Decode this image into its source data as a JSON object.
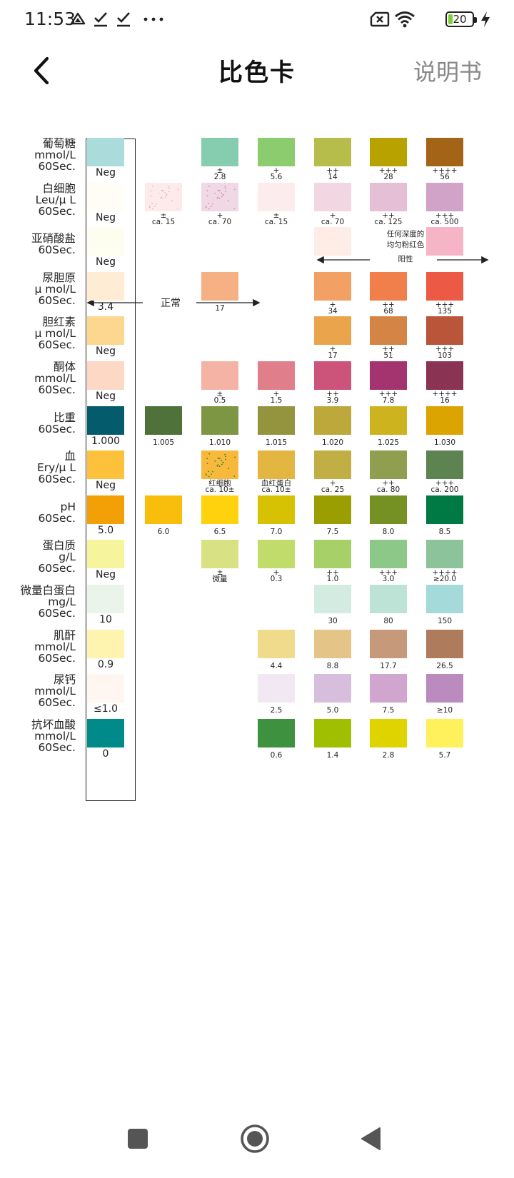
{
  "status_bar": {
    "time": "11:53",
    "battery_percent": "20",
    "battery_level": 0.2,
    "icons": [
      "drive-icon",
      "check-icon",
      "check-icon",
      "more-dots-icon",
      "sim-x-icon",
      "wifi-icon",
      "battery-icon",
      "charging-icon"
    ]
  },
  "header": {
    "title": "比色卡",
    "manual": "说明书",
    "back_icon": "back-chevron-icon"
  },
  "annotations": {
    "normal": "正常",
    "positive": "阳性",
    "pink_note_line1": "任何深度的",
    "pink_note_line2": "均匀粉红色"
  },
  "rows": [
    {
      "label": [
        "葡萄糖",
        "mmol/L",
        "60Sec."
      ],
      "ref": {
        "color": "#a9dcdb",
        "value": "Neg"
      },
      "cells": [
        {
          "col": 2,
          "color": "#86cdb0",
          "value": "±",
          "value2": "2.8"
        },
        {
          "col": 3,
          "color": "#8ccb6e",
          "value": "+",
          "value2": "5.6"
        },
        {
          "col": 4,
          "color": "#b6bd4b",
          "value": "++",
          "value2": "14"
        },
        {
          "col": 5,
          "color": "#b8a200",
          "value": "+++",
          "value2": "28"
        },
        {
          "col": 6,
          "color": "#a46417",
          "value": "++++",
          "value2": "56"
        }
      ]
    },
    {
      "label": [
        "白细胞",
        "Leu/μ L",
        "60Sec."
      ],
      "ref": {
        "color": "#fffdf5",
        "value": "Neg"
      },
      "cells": [
        {
          "col": 1,
          "color": "#fdebec",
          "dots": "#e7b4c3",
          "value": "±",
          "value2": "ca. 15"
        },
        {
          "col": 2,
          "color": "#f0d8e4",
          "dots": "#c893b4",
          "value": "+",
          "value2": "ca. 70"
        },
        {
          "col": 3,
          "color": "#fdeced",
          "value": "±",
          "value2": "ca. 15"
        },
        {
          "col": 4,
          "color": "#f2d6e2",
          "value": "+",
          "value2": "ca. 70"
        },
        {
          "col": 5,
          "color": "#e5bfd6",
          "value": "++",
          "value2": "ca. 125"
        },
        {
          "col": 6,
          "color": "#d1a3c8",
          "value": "+++",
          "value2": "ca. 500"
        }
      ]
    },
    {
      "label": [
        "亚硝酸盐",
        "60Sec."
      ],
      "ref": {
        "color": "#fefef0",
        "value": "Neg"
      },
      "cells": [
        {
          "col": 4,
          "color": "#feece6"
        },
        {
          "col": 6,
          "color": "#f5b5c7"
        }
      ]
    },
    {
      "label": [
        "尿胆原",
        "μ mol/L",
        "60Sec."
      ],
      "ref": {
        "color": "#feecd5",
        "value": "3.4"
      },
      "cells": [
        {
          "col": 2,
          "color": "#f5b083",
          "value": "17"
        },
        {
          "col": 4,
          "color": "#f2a063",
          "value": "+",
          "value2": "34"
        },
        {
          "col": 5,
          "color": "#f07f4b",
          "value": "++",
          "value2": "68"
        },
        {
          "col": 6,
          "color": "#ec5a45",
          "value": "+++",
          "value2": "135"
        }
      ]
    },
    {
      "label": [
        "胆红素",
        "μ mol/L",
        "60Sec."
      ],
      "ref": {
        "color": "#fdd68f",
        "value": "Neg"
      },
      "cells": [
        {
          "col": 4,
          "color": "#eaa44c",
          "value": "+",
          "value2": "17"
        },
        {
          "col": 5,
          "color": "#d48444",
          "value": "++",
          "value2": "51"
        },
        {
          "col": 6,
          "color": "#b95538",
          "value": "+++",
          "value2": "103"
        }
      ]
    },
    {
      "label": [
        "酮体",
        "mmol/L",
        "60Sec."
      ],
      "ref": {
        "color": "#fdd8c5",
        "value": "Neg"
      },
      "cells": [
        {
          "col": 2,
          "color": "#f4b3a4",
          "value": "±",
          "value2": "0.5"
        },
        {
          "col": 3,
          "color": "#e07f89",
          "value": "+",
          "value2": "1.5"
        },
        {
          "col": 4,
          "color": "#cc5379",
          "value": "++",
          "value2": "3.9"
        },
        {
          "col": 5,
          "color": "#a43470",
          "value": "+++",
          "value2": "7.8"
        },
        {
          "col": 6,
          "color": "#8a3352",
          "value": "++++",
          "value2": "16"
        }
      ]
    },
    {
      "label": [
        "比重",
        "60Sec."
      ],
      "ref": {
        "color": "#035b6b",
        "value": "1.000"
      },
      "cells": [
        {
          "col": 1,
          "color": "#4e723a",
          "value": "1.005"
        },
        {
          "col": 2,
          "color": "#7d9643",
          "value": "1.010"
        },
        {
          "col": 3,
          "color": "#94943f",
          "value": "1.015"
        },
        {
          "col": 4,
          "color": "#bca83b",
          "value": "1.020"
        },
        {
          "col": 5,
          "color": "#cdb41e",
          "value": "1.025"
        },
        {
          "col": 6,
          "color": "#dba400",
          "value": "1.030"
        }
      ]
    },
    {
      "label": [
        "血",
        "Ery/μ L",
        "60Sec."
      ],
      "ref": {
        "color": "#fdc13c",
        "value": "Neg"
      },
      "cells": [
        {
          "col": 2,
          "color": "#f6b93b",
          "dots": "#4a7a2a",
          "value": "红细胞",
          "value2": "ca. 10±"
        },
        {
          "col": 3,
          "color": "#e3b641",
          "value": "血红蛋白",
          "value2": "ca. 10±"
        },
        {
          "col": 4,
          "color": "#c1ae45",
          "value": "+",
          "value2": "ca. 25"
        },
        {
          "col": 5,
          "color": "#909f4f",
          "value": "++",
          "value2": "ca. 80"
        },
        {
          "col": 6,
          "color": "#5d8350",
          "value": "+++",
          "value2": "ca. 200"
        }
      ]
    },
    {
      "label": [
        "pH",
        "60Sec."
      ],
      "ref": {
        "color": "#f39f06",
        "value": "5.0"
      },
      "cells": [
        {
          "col": 1,
          "color": "#f9be0b",
          "value": "6.0"
        },
        {
          "col": 2,
          "color": "#ffd20d",
          "value": "6.5"
        },
        {
          "col": 3,
          "color": "#d6c202",
          "value": "7.0"
        },
        {
          "col": 4,
          "color": "#9a9e00",
          "value": "7.5"
        },
        {
          "col": 5,
          "color": "#769123",
          "value": "8.0"
        },
        {
          "col": 6,
          "color": "#007a45",
          "value": "8.5"
        }
      ]
    },
    {
      "label": [
        "蛋白质",
        "g/L",
        "60Sec."
      ],
      "ref": {
        "color": "#f7f49e",
        "value": "Neg"
      },
      "cells": [
        {
          "col": 2,
          "color": "#d8e283",
          "value": "±",
          "value2": "微量"
        },
        {
          "col": 3,
          "color": "#c2dc6b",
          "value": "+",
          "value2": "0.3"
        },
        {
          "col": 4,
          "color": "#a7d168",
          "value": "++",
          "value2": "1.0"
        },
        {
          "col": 5,
          "color": "#8cc887",
          "value": "+++",
          "value2": "3.0"
        },
        {
          "col": 6,
          "color": "#8dc39a",
          "value": "++++",
          "value2": "≥20.0"
        }
      ]
    },
    {
      "label": [
        "微量白蛋白",
        "mg/L",
        "60Sec."
      ],
      "ref": {
        "color": "#eaf4ea",
        "value": "10"
      },
      "cells": [
        {
          "col": 4,
          "color": "#d4ebe2",
          "value": "30"
        },
        {
          "col": 5,
          "color": "#bde2d6",
          "value": "80"
        },
        {
          "col": 6,
          "color": "#a4dad9",
          "value": "150"
        }
      ]
    },
    {
      "label": [
        "肌酐",
        "mmol/L",
        "60Sec."
      ],
      "ref": {
        "color": "#fef4b0",
        "value": "0.9"
      },
      "cells": [
        {
          "col": 3,
          "color": "#f0db8c",
          "value": "4.4"
        },
        {
          "col": 4,
          "color": "#e5c587",
          "value": "8.8"
        },
        {
          "col": 5,
          "color": "#c59979",
          "value": "17.7"
        },
        {
          "col": 6,
          "color": "#ae7c5c",
          "value": "26.5"
        }
      ]
    },
    {
      "label": [
        "尿钙",
        "mmol/L",
        "60Sec."
      ],
      "ref": {
        "color": "#fff5f1",
        "value": "≤1.0"
      },
      "cells": [
        {
          "col": 3,
          "color": "#f2e8f3",
          "value": "2.5"
        },
        {
          "col": 4,
          "color": "#d8bedd",
          "value": "5.0"
        },
        {
          "col": 5,
          "color": "#d0a6cf",
          "value": "7.5"
        },
        {
          "col": 6,
          "color": "#bb8abf",
          "value": "≥10"
        }
      ]
    },
    {
      "label": [
        "抗坏血酸",
        "mmol/L",
        "60Sec."
      ],
      "ref": {
        "color": "#008a8a",
        "value": "0"
      },
      "cells": [
        {
          "col": 3,
          "color": "#3d913f",
          "value": "0.6"
        },
        {
          "col": 4,
          "color": "#9fbf00",
          "value": "1.4"
        },
        {
          "col": 5,
          "color": "#dfd400",
          "value": "2.8"
        },
        {
          "col": 6,
          "color": "#fff15c",
          "value": "5.7"
        }
      ]
    }
  ],
  "nav": {
    "icons": [
      "recents-square-icon",
      "home-circle-icon",
      "back-triangle-icon"
    ]
  }
}
